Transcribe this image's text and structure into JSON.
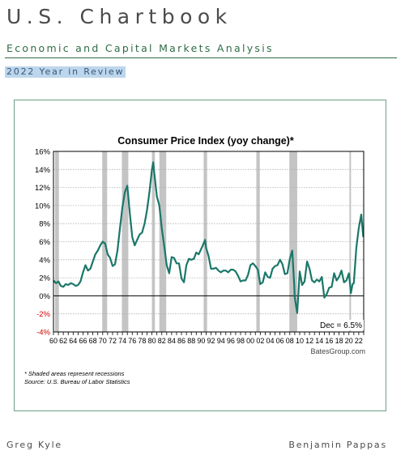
{
  "document": {
    "title": "U.S. Chartbook",
    "subtitle": "Economic and Capital Markets Analysis",
    "badge": "2022 Year in Review",
    "authors": [
      "Greg Kyle",
      "Benjamin Pappas"
    ]
  },
  "chart_data": {
    "type": "line",
    "title": "Consumer Price Index (yoy change)*",
    "xlabel": "",
    "ylabel": "",
    "xlim": [
      1960,
      2023
    ],
    "ylim": [
      -4,
      16
    ],
    "y_ticks": [
      "16%",
      "14%",
      "12%",
      "10%",
      "8%",
      "6%",
      "4%",
      "2%",
      "0%",
      "-2%",
      "-4%"
    ],
    "x_ticks": [
      "60",
      "62",
      "64",
      "66",
      "68",
      "70",
      "72",
      "74",
      "76",
      "78",
      "80",
      "82",
      "84",
      "86",
      "88",
      "90",
      "92",
      "94",
      "96",
      "98",
      "00",
      "02",
      "04",
      "06",
      "08",
      "10",
      "12",
      "14",
      "16",
      "18",
      "20",
      "22"
    ],
    "grid": true,
    "zero_line": true,
    "series": [
      {
        "color": "#1a7769",
        "x": [
          1960.0,
          1960.5,
          1961.0,
          1961.5,
          1962.0,
          1962.5,
          1963.0,
          1963.5,
          1964.0,
          1964.5,
          1965.0,
          1965.5,
          1966.0,
          1966.5,
          1967.0,
          1967.5,
          1968.0,
          1968.5,
          1969.0,
          1969.5,
          1970.0,
          1970.5,
          1971.0,
          1971.5,
          1972.0,
          1972.5,
          1973.0,
          1973.5,
          1974.0,
          1974.5,
          1975.0,
          1975.5,
          1976.0,
          1976.5,
          1977.0,
          1977.5,
          1978.0,
          1978.5,
          1979.0,
          1979.5,
          1980.0,
          1980.25,
          1980.5,
          1981.0,
          1981.5,
          1982.0,
          1982.5,
          1983.0,
          1983.5,
          1984.0,
          1984.5,
          1985.0,
          1985.5,
          1986.0,
          1986.5,
          1987.0,
          1987.5,
          1988.0,
          1988.5,
          1989.0,
          1989.5,
          1990.0,
          1990.5,
          1990.8,
          1991.0,
          1991.5,
          1992.0,
          1992.5,
          1993.0,
          1993.5,
          1994.0,
          1994.5,
          1995.0,
          1995.5,
          1996.0,
          1996.5,
          1997.0,
          1997.5,
          1998.0,
          1998.5,
          1999.0,
          1999.5,
          2000.0,
          2000.5,
          2001.0,
          2001.5,
          2002.0,
          2002.5,
          2003.0,
          2003.5,
          2004.0,
          2004.5,
          2005.0,
          2005.5,
          2006.0,
          2006.5,
          2007.0,
          2007.5,
          2008.0,
          2008.5,
          2008.9,
          2009.0,
          2009.5,
          2010.0,
          2010.5,
          2011.0,
          2011.5,
          2012.0,
          2012.5,
          2013.0,
          2013.5,
          2014.0,
          2014.5,
          2015.0,
          2015.5,
          2016.0,
          2016.5,
          2017.0,
          2017.5,
          2018.0,
          2018.5,
          2019.0,
          2019.5,
          2020.0,
          2020.4,
          2020.75,
          2021.0,
          2021.5,
          2022.0,
          2022.5,
          2022.92
        ],
        "y": [
          1.7,
          1.4,
          1.6,
          1.1,
          1.0,
          1.3,
          1.2,
          1.4,
          1.3,
          1.1,
          1.2,
          1.6,
          2.6,
          3.4,
          2.8,
          3.0,
          3.8,
          4.6,
          5.0,
          5.6,
          6.0,
          5.8,
          4.6,
          4.2,
          3.3,
          3.5,
          5.0,
          7.5,
          9.8,
          11.5,
          12.2,
          9.2,
          6.5,
          5.6,
          6.2,
          6.8,
          7.0,
          8.0,
          9.5,
          11.5,
          14.0,
          14.8,
          13.5,
          11.0,
          10.0,
          7.5,
          5.5,
          3.4,
          2.5,
          4.3,
          4.2,
          3.6,
          3.6,
          1.9,
          1.5,
          3.4,
          4.1,
          4.0,
          4.1,
          4.8,
          4.6,
          5.2,
          5.8,
          6.2,
          5.3,
          4.4,
          3.0,
          3.0,
          3.1,
          2.8,
          2.6,
          2.8,
          2.8,
          2.6,
          2.9,
          2.9,
          2.7,
          2.2,
          1.6,
          1.7,
          1.7,
          2.3,
          3.4,
          3.6,
          3.3,
          2.9,
          1.3,
          1.5,
          2.6,
          2.1,
          2.0,
          3.0,
          3.3,
          3.4,
          4.0,
          3.5,
          2.4,
          2.5,
          4.1,
          5.0,
          1.1,
          -0.2,
          -1.9,
          2.7,
          1.2,
          1.6,
          3.8,
          3.0,
          1.7,
          1.5,
          1.8,
          1.6,
          2.1,
          -0.2,
          0.2,
          0.9,
          1.0,
          2.5,
          1.7,
          2.1,
          2.8,
          1.5,
          1.7,
          2.5,
          0.3,
          1.3,
          1.4,
          5.3,
          7.5,
          9.0,
          6.5
        ]
      }
    ],
    "recessions": [
      [
        1960.3,
        1961.1
      ],
      [
        1969.9,
        1970.9
      ],
      [
        1973.9,
        1975.2
      ],
      [
        1980.0,
        1980.6
      ],
      [
        1981.5,
        1982.9
      ],
      [
        1990.5,
        1991.2
      ],
      [
        2001.2,
        2001.9
      ],
      [
        2007.9,
        2009.5
      ],
      [
        2020.1,
        2020.4
      ]
    ],
    "annotations": [
      {
        "text": "Dec = 6.5%"
      },
      {
        "text": "BatesGroup.com"
      }
    ],
    "notes": [
      "* Shaded areas represent recessions",
      "Source: U.S. Bureau of Labor Statistics"
    ],
    "colors": {
      "series": "#1a7769",
      "recession": "#c4c4c4",
      "grid": "#b0b0b0",
      "negative_tick": "#d40000",
      "frame": "#6f9f83"
    }
  }
}
